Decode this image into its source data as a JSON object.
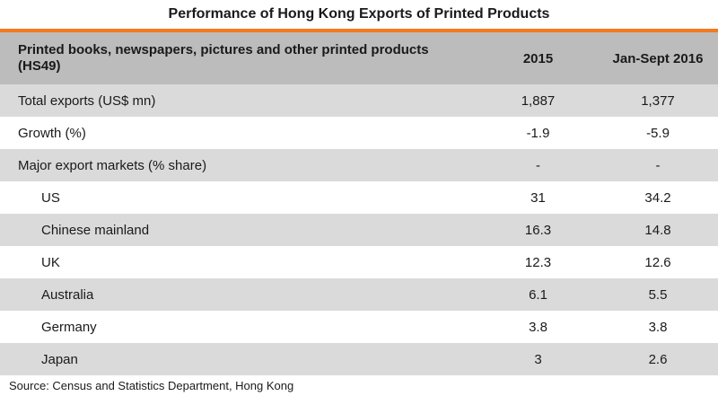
{
  "title": "Performance of Hong Kong Exports of Printed Products",
  "colors": {
    "accent": "#f47a20",
    "header_bg": "#bcbcbc",
    "stripe_bg": "#dadada"
  },
  "chart_data": {
    "type": "table",
    "title": "Performance of Hong Kong Exports of Printed Products",
    "columns": [
      "Printed books, newspapers, pictures and other printed products (HS49)",
      "2015",
      "Jan-Sept 2016"
    ],
    "rows": [
      {
        "label": "Total exports (US$ mn)",
        "values": [
          "1,887",
          "1,377"
        ],
        "indent": false
      },
      {
        "label": "Growth (%)",
        "values": [
          "-1.9",
          "-5.9"
        ],
        "indent": false
      },
      {
        "label": "Major export markets (% share)",
        "values": [
          "-",
          "-"
        ],
        "indent": false
      },
      {
        "label": "US",
        "values": [
          "31",
          "34.2"
        ],
        "indent": true
      },
      {
        "label": "Chinese mainland",
        "values": [
          "16.3",
          "14.8"
        ],
        "indent": true
      },
      {
        "label": "UK",
        "values": [
          "12.3",
          "12.6"
        ],
        "indent": true
      },
      {
        "label": "Australia",
        "values": [
          "6.1",
          "5.5"
        ],
        "indent": true
      },
      {
        "label": "Germany",
        "values": [
          "3.8",
          "3.8"
        ],
        "indent": true
      },
      {
        "label": "Japan",
        "values": [
          "3",
          "2.6"
        ],
        "indent": true
      }
    ]
  },
  "source": "Source: Census and Statistics Department, Hong Kong"
}
